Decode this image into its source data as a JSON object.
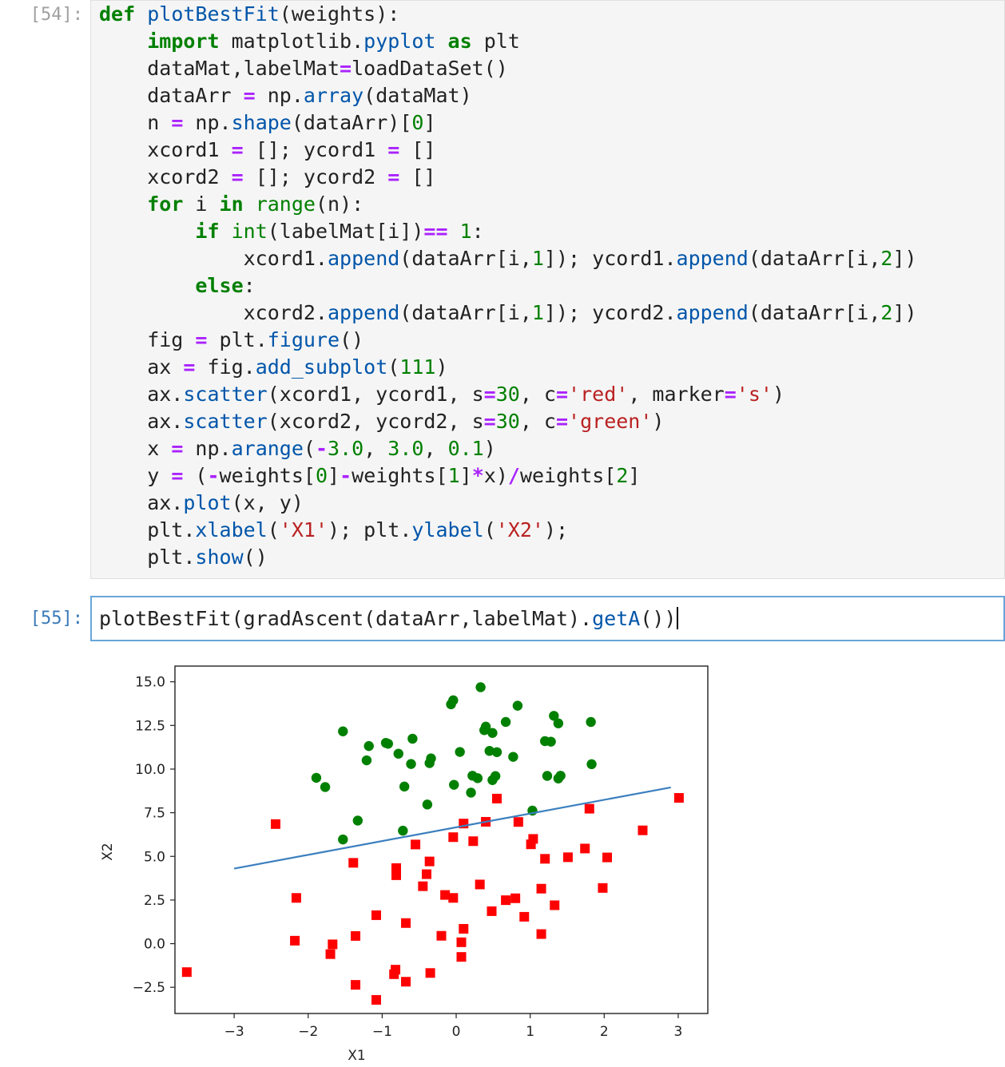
{
  "cells": [
    {
      "prompt": "[54]:",
      "code_lines": [
        "def plotBestFit(weights):",
        "    import matplotlib.pyplot as plt",
        "    dataMat,labelMat=loadDataSet()",
        "    dataArr = np.array(dataMat)",
        "    n = np.shape(dataArr)[0]",
        "    xcord1 = []; ycord1 = []",
        "    xcord2 = []; ycord2 = []",
        "    for i in range(n):",
        "        if int(labelMat[i])== 1:",
        "            xcord1.append(dataArr[i,1]); ycord1.append(dataArr[i,2])",
        "        else:",
        "            xcord2.append(dataArr[i,1]); ycord2.append(dataArr[i,2])",
        "    fig = plt.figure()",
        "    ax = fig.add_subplot(111)",
        "    ax.scatter(xcord1, ycord1, s=30, c='red', marker='s')",
        "    ax.scatter(xcord2, ycord2, s=30, c='green')",
        "    x = np.arange(-3.0, 3.0, 0.1)",
        "    y = (-weights[0]-weights[1]*x)/weights[2]",
        "    ax.plot(x, y)",
        "    plt.xlabel('X1'); plt.ylabel('X2');",
        "    plt.show()"
      ]
    },
    {
      "prompt": "[55]:",
      "code_lines": [
        "plotBestFit(gradAscent(dataArr,labelMat).getA())"
      ]
    }
  ],
  "chart_data": {
    "type": "scatter",
    "xlabel": "X1",
    "ylabel": "X2",
    "xlim": [
      -3.8,
      3.4
    ],
    "ylim": [
      -4.0,
      15.9
    ],
    "xticks": [
      -3,
      -2,
      -1,
      0,
      1,
      2,
      3
    ],
    "xtick_labels": [
      "−3",
      "−2",
      "−1",
      "0",
      "1",
      "2",
      "3"
    ],
    "yticks": [
      -2.5,
      0.0,
      2.5,
      5.0,
      7.5,
      10.0,
      12.5,
      15.0
    ],
    "ytick_labels": [
      "−2.5",
      "0.0",
      "2.5",
      "5.0",
      "7.5",
      "10.0",
      "12.5",
      "15.0"
    ],
    "colors": {
      "red": "#ff0000",
      "green": "#008000",
      "line": "#3b7fbf"
    },
    "series": [
      {
        "marker": "square",
        "color": "red",
        "points": [
          [
            -3.64,
            -1.63
          ],
          [
            -2.44,
            6.85
          ],
          [
            -2.16,
            2.62
          ],
          [
            -2.18,
            0.17
          ],
          [
            -1.67,
            -0.04
          ],
          [
            -1.7,
            -0.6
          ],
          [
            -1.39,
            4.63
          ],
          [
            -1.36,
            0.44
          ],
          [
            -1.36,
            -2.36
          ],
          [
            -1.08,
            1.63
          ],
          [
            -1.08,
            -3.22
          ],
          [
            -0.81,
            4.33
          ],
          [
            -0.81,
            3.92
          ],
          [
            -0.82,
            -1.49
          ],
          [
            -0.84,
            -1.75
          ],
          [
            -0.68,
            1.18
          ],
          [
            -0.68,
            -2.18
          ],
          [
            -0.55,
            5.68
          ],
          [
            -0.45,
            3.29
          ],
          [
            -0.4,
            3.98
          ],
          [
            -0.36,
            4.71
          ],
          [
            -0.35,
            -1.68
          ],
          [
            -0.2,
            0.45
          ],
          [
            -0.15,
            2.79
          ],
          [
            -0.04,
            2.62
          ],
          [
            -0.04,
            6.1
          ],
          [
            0.07,
            0.08
          ],
          [
            0.07,
            -0.76
          ],
          [
            0.1,
            0.85
          ],
          [
            0.1,
            6.88
          ],
          [
            0.23,
            5.87
          ],
          [
            0.32,
            3.39
          ],
          [
            0.4,
            6.98
          ],
          [
            0.48,
            1.86
          ],
          [
            0.55,
            8.31
          ],
          [
            0.67,
            2.49
          ],
          [
            0.8,
            2.6
          ],
          [
            0.84,
            6.97
          ],
          [
            0.92,
            1.54
          ],
          [
            1.01,
            5.69
          ],
          [
            1.04,
            6.0
          ],
          [
            1.15,
            0.55
          ],
          [
            1.15,
            3.15
          ],
          [
            1.2,
            4.86
          ],
          [
            1.33,
            2.2
          ],
          [
            1.51,
            4.95
          ],
          [
            1.74,
            5.45
          ],
          [
            1.8,
            7.73
          ],
          [
            1.98,
            3.19
          ],
          [
            2.04,
            4.94
          ],
          [
            2.52,
            6.49
          ],
          [
            3.01,
            8.35
          ]
        ]
      },
      {
        "marker": "circle",
        "color": "green",
        "points": [
          [
            -1.89,
            9.5
          ],
          [
            -1.77,
            8.97
          ],
          [
            -1.53,
            12.16
          ],
          [
            -1.53,
            5.97
          ],
          [
            -1.33,
            7.05
          ],
          [
            -1.21,
            10.5
          ],
          [
            -1.18,
            11.32
          ],
          [
            -0.95,
            11.5
          ],
          [
            -0.92,
            11.45
          ],
          [
            -0.78,
            10.88
          ],
          [
            -0.72,
            6.47
          ],
          [
            -0.7,
            9.0
          ],
          [
            -0.61,
            10.29
          ],
          [
            -0.59,
            11.74
          ],
          [
            -0.39,
            7.97
          ],
          [
            -0.36,
            10.34
          ],
          [
            -0.34,
            10.61
          ],
          [
            -0.07,
            13.71
          ],
          [
            -0.04,
            13.94
          ],
          [
            -0.03,
            9.1
          ],
          [
            0.05,
            10.98
          ],
          [
            0.2,
            8.65
          ],
          [
            0.22,
            9.62
          ],
          [
            0.29,
            9.48
          ],
          [
            0.33,
            14.69
          ],
          [
            0.38,
            12.23
          ],
          [
            0.4,
            12.43
          ],
          [
            0.45,
            11.04
          ],
          [
            0.49,
            12.07
          ],
          [
            0.49,
            9.37
          ],
          [
            0.53,
            9.6
          ],
          [
            0.55,
            10.97
          ],
          [
            0.67,
            12.7
          ],
          [
            0.77,
            10.7
          ],
          [
            0.83,
            13.63
          ],
          [
            1.03,
            7.62
          ],
          [
            1.2,
            11.6
          ],
          [
            1.23,
            9.61
          ],
          [
            1.28,
            11.57
          ],
          [
            1.32,
            13.05
          ],
          [
            1.38,
            12.62
          ],
          [
            1.38,
            9.46
          ],
          [
            1.41,
            9.62
          ],
          [
            1.82,
            12.7
          ],
          [
            1.83,
            10.28
          ]
        ]
      },
      {
        "type": "line",
        "color": "line",
        "points": [
          [
            -3.0,
            4.3
          ],
          [
            2.9,
            8.95
          ]
        ]
      }
    ]
  }
}
